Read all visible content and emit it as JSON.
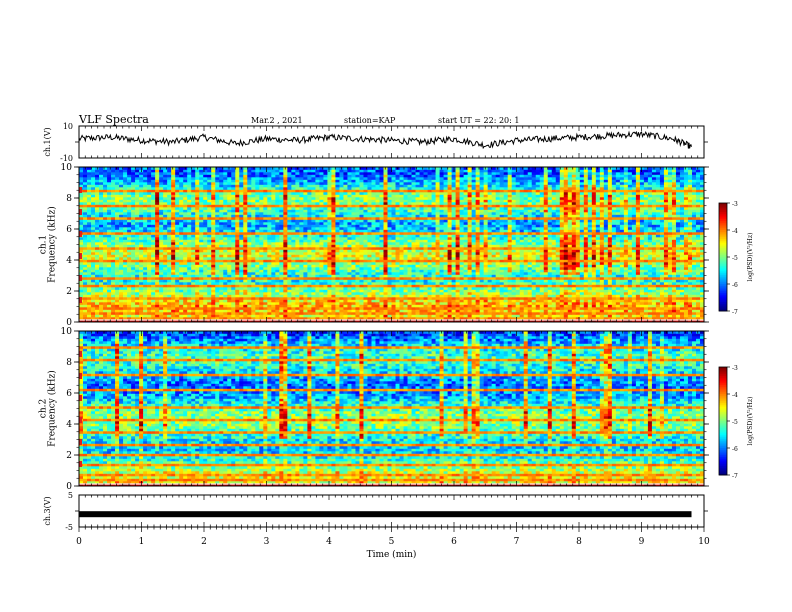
{
  "header": {
    "title": "VLF Spectra",
    "date": "Mar.2 , 2021",
    "station": "station=KAP",
    "start": "start UT = 22: 20: 1"
  },
  "chart_data": [
    {
      "type": "line",
      "ylabel": "ch.1(V)",
      "ylim": [
        -10,
        10
      ],
      "yticks": [
        "10",
        "-10"
      ],
      "xlim": [
        0,
        10
      ],
      "x": [
        0,
        0.5,
        1,
        1.5,
        2,
        2.5,
        3,
        3.5,
        4,
        4.5,
        5,
        5.5,
        6,
        6.5,
        7,
        7.5,
        8,
        8.5,
        9,
        9.5,
        9.8
      ],
      "values": [
        2,
        3,
        1,
        0,
        3,
        -1,
        2,
        1,
        3,
        2,
        1,
        0,
        2,
        -2,
        1,
        2,
        3,
        4,
        5,
        2,
        -3
      ]
    },
    {
      "type": "heatmap",
      "ylabel": "ch.1\nFrequency (kHz)",
      "ylim": [
        0,
        10
      ],
      "yticks": [
        0,
        2,
        4,
        6,
        8,
        10
      ],
      "xlim": [
        0,
        10
      ],
      "colorbar": {
        "label": "log(PSD)(V²/Hz)",
        "range": [
          -7,
          -3
        ],
        "ticks": [
          "-3",
          "-4",
          "-5",
          "-6",
          "-7"
        ]
      }
    },
    {
      "type": "heatmap",
      "ylabel": "ch.2\nFrequency (kHz)",
      "ylim": [
        0,
        10
      ],
      "yticks": [
        0,
        2,
        4,
        6,
        8,
        10
      ],
      "xlim": [
        0,
        10
      ],
      "colorbar": {
        "label": "log(PSD)(V²/Hz)",
        "range": [
          -7,
          -3
        ],
        "ticks": [
          "-3",
          "-4",
          "-5",
          "-6",
          "-7"
        ]
      }
    },
    {
      "type": "line",
      "ylabel": "ch.3(V)",
      "ylim": [
        -5,
        5
      ],
      "yticks": [
        "5",
        "-5"
      ],
      "xlim": [
        0,
        10
      ],
      "xticks": [
        0,
        1,
        2,
        3,
        4,
        5,
        6,
        7,
        8,
        9,
        10
      ],
      "xlabel": "Time (min)",
      "x": [
        0,
        9.8
      ],
      "values": [
        -1,
        -1
      ]
    }
  ]
}
